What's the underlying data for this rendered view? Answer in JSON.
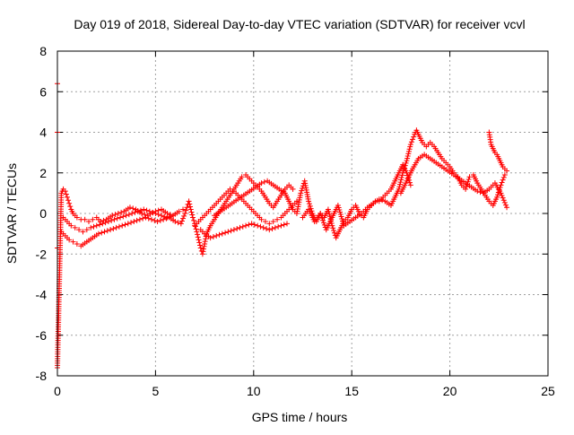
{
  "chart_data": {
    "type": "scatter",
    "title": "Day 019 of 2018, Sidereal Day-to-day VTEC variation (SDTVAR) for receiver vcvl",
    "xlabel": "GPS time / hours",
    "ylabel": "SDTVAR / TECUs",
    "xlim": [
      0,
      25
    ],
    "ylim": [
      -8,
      8
    ],
    "xticks": [
      "0",
      "5",
      "10",
      "15",
      "20",
      "25"
    ],
    "yticks": [
      "-8",
      "-6",
      "-4",
      "-2",
      "0",
      "2",
      "4",
      "6",
      "8"
    ],
    "grid": true,
    "marker": "plus",
    "marker_color": "#ff0000",
    "series": [
      {
        "name": "SDTVAR",
        "x": [
          0.0,
          0.0,
          0.0,
          0.0,
          0.2,
          0.3,
          0.4,
          0.5,
          0.6,
          0.7,
          0.8,
          0.9,
          1.0,
          1.2,
          1.4,
          1.6,
          1.8,
          2.0,
          2.2,
          2.5,
          2.8,
          3.1,
          3.4,
          3.7,
          4.0,
          4.3,
          4.6,
          5.0,
          5.3,
          5.6,
          5.9,
          6.2,
          6.4,
          0.3,
          0.5,
          0.7,
          0.9,
          1.1,
          1.3,
          1.5,
          1.7,
          2.0,
          2.3,
          2.6,
          2.9,
          3.2,
          3.5,
          3.8,
          4.1,
          4.4,
          4.7,
          5.0,
          5.3,
          5.6,
          5.9,
          0.2,
          0.4,
          0.6,
          0.8,
          1.0,
          1.2,
          1.5,
          1.8,
          2.1,
          2.4,
          2.7,
          3.0,
          3.3,
          3.6,
          3.9,
          4.2,
          4.5,
          4.8,
          5.1,
          5.4,
          5.7,
          6.0,
          6.3,
          6.5,
          6.6,
          6.7,
          6.8,
          6.9,
          7.0,
          7.1,
          7.2,
          7.3,
          7.4,
          7.5,
          7.6,
          7.8,
          8.0,
          8.2,
          8.4,
          8.6,
          8.8,
          9.0,
          9.2,
          9.4,
          9.6,
          9.8,
          10.0,
          10.2,
          10.4,
          10.6,
          10.8,
          11.0,
          11.2,
          11.4,
          11.6,
          11.8,
          12.0,
          7.0,
          7.2,
          7.4,
          7.6,
          7.8,
          8.0,
          8.2,
          8.4,
          8.6,
          8.8,
          9.0,
          9.2,
          9.4,
          9.6,
          9.8,
          10.0,
          10.2,
          10.4,
          10.6,
          10.8,
          11.0,
          11.2,
          11.4,
          11.6,
          11.8,
          12.0,
          12.2,
          7.3,
          7.5,
          7.8,
          8.1,
          8.4,
          8.7,
          9.0,
          9.3,
          9.6,
          9.9,
          10.2,
          10.5,
          10.8,
          11.1,
          11.4,
          11.7,
          8.0,
          8.3,
          8.6,
          8.9,
          9.2,
          9.5,
          9.8,
          10.1,
          10.4,
          10.7,
          11.0,
          11.3,
          11.6,
          12.0,
          12.2,
          12.4,
          12.6,
          12.8,
          13.0,
          13.2,
          13.4,
          13.6,
          13.8,
          14.0,
          14.2,
          14.4,
          14.6,
          14.8,
          15.0,
          15.2,
          15.4,
          15.6,
          15.8,
          16.0,
          16.2,
          16.4,
          16.6,
          16.8,
          17.0,
          17.2,
          17.4,
          17.6,
          17.8,
          18.0,
          12.5,
          12.8,
          13.1,
          13.4,
          13.7,
          14.0,
          14.3,
          14.6,
          14.9,
          15.2,
          15.5,
          15.8,
          16.1,
          16.4,
          16.7,
          17.0,
          17.2,
          17.4,
          17.6,
          17.8,
          18.0,
          18.2,
          18.3,
          18.4,
          18.5,
          18.6,
          18.8,
          19.0,
          19.2,
          19.4,
          19.6,
          19.8,
          20.0,
          20.2,
          20.4,
          20.6,
          20.8,
          21.0,
          21.2,
          21.4,
          21.6,
          21.8,
          22.0,
          22.2,
          22.4,
          22.6,
          22.8,
          17.5,
          17.8,
          18.1,
          18.4,
          18.7,
          19.0,
          19.3,
          19.6,
          19.9,
          20.2,
          20.5,
          20.8,
          21.1,
          21.4,
          21.7,
          22.0,
          22.3,
          22.6,
          22.9,
          22.0,
          22.1,
          22.2,
          22.3,
          22.4,
          22.5,
          22.6,
          22.7,
          22.8,
          22.9
        ],
        "y": [
          6.4,
          4.0,
          -1.7,
          -7.6,
          1.0,
          1.2,
          1.1,
          0.8,
          0.5,
          0.2,
          0.0,
          -0.1,
          -0.2,
          -0.3,
          -0.3,
          -0.4,
          -0.3,
          -0.2,
          -0.4,
          -0.3,
          -0.1,
          0.0,
          0.1,
          0.3,
          0.2,
          0.0,
          -0.1,
          0.1,
          0.2,
          0.0,
          -0.1,
          0.1,
          0.2,
          -0.2,
          -0.4,
          -0.6,
          -0.7,
          -0.8,
          -0.9,
          -0.8,
          -0.7,
          -0.6,
          -0.5,
          -0.4,
          -0.3,
          -0.2,
          -0.1,
          0.0,
          0.1,
          0.2,
          0.1,
          0.0,
          -0.1,
          -0.2,
          -0.1,
          -0.9,
          -1.1,
          -1.3,
          -1.4,
          -1.5,
          -1.6,
          -1.4,
          -1.2,
          -1.0,
          -0.9,
          -0.8,
          -0.7,
          -0.6,
          -0.5,
          -0.4,
          -0.3,
          -0.2,
          -0.3,
          -0.4,
          -0.3,
          -0.2,
          -0.4,
          -0.5,
          0.0,
          0.3,
          0.6,
          0.2,
          -0.2,
          -0.5,
          -0.9,
          -1.3,
          -1.7,
          -2.0,
          -1.5,
          -1.0,
          -0.6,
          -0.3,
          0.0,
          0.3,
          0.6,
          0.9,
          1.2,
          1.5,
          1.8,
          1.9,
          1.7,
          1.5,
          1.3,
          1.1,
          0.8,
          0.5,
          0.3,
          0.6,
          0.9,
          1.2,
          1.4,
          1.2,
          -0.6,
          -0.4,
          -0.2,
          0.0,
          0.2,
          0.4,
          0.6,
          0.8,
          1.0,
          1.2,
          1.1,
          0.9,
          0.7,
          0.5,
          0.3,
          0.1,
          -0.1,
          -0.3,
          -0.4,
          -0.5,
          -0.4,
          -0.3,
          -0.2,
          0.0,
          0.2,
          0.4,
          0.6,
          -0.8,
          -1.0,
          -1.2,
          -1.1,
          -1.0,
          -0.9,
          -0.8,
          -0.7,
          -0.6,
          -0.5,
          -0.6,
          -0.7,
          -0.8,
          -0.7,
          -0.6,
          -0.5,
          -0.1,
          0.1,
          0.3,
          0.5,
          0.7,
          0.9,
          1.1,
          1.3,
          1.5,
          1.6,
          1.4,
          1.2,
          1.0,
          0.2,
          0.0,
          1.0,
          1.6,
          0.6,
          0.0,
          -0.4,
          0.0,
          -0.2,
          0.2,
          -0.6,
          -1.2,
          -0.8,
          -0.4,
          -0.2,
          0.2,
          0.4,
          0.0,
          -0.2,
          0.2,
          0.4,
          0.6,
          0.6,
          0.8,
          1.0,
          1.2,
          1.6,
          2.0,
          2.4,
          2.0,
          1.4,
          -0.2,
          0.2,
          -0.4,
          0.0,
          -0.8,
          -0.2,
          0.4,
          -0.6,
          -0.4,
          -0.2,
          0.0,
          0.3,
          0.5,
          0.7,
          0.6,
          0.4,
          0.8,
          1.2,
          2.0,
          2.6,
          3.4,
          3.9,
          4.1,
          3.9,
          3.7,
          3.5,
          3.3,
          3.5,
          3.3,
          3.0,
          2.7,
          2.5,
          2.3,
          2.0,
          1.8,
          1.4,
          1.2,
          1.8,
          1.9,
          1.5,
          1.2,
          0.9,
          0.6,
          0.4,
          0.8,
          1.4,
          1.9,
          1.0,
          1.6,
          2.2,
          2.7,
          2.9,
          2.7,
          2.5,
          2.3,
          2.1,
          1.9,
          1.7,
          1.5,
          1.3,
          1.1,
          1.0,
          1.2,
          1.5,
          1.0,
          0.3,
          4.0,
          3.4,
          3.2,
          3.0,
          2.9,
          2.7,
          2.5,
          2.3,
          2.2,
          2.1
        ]
      }
    ]
  }
}
